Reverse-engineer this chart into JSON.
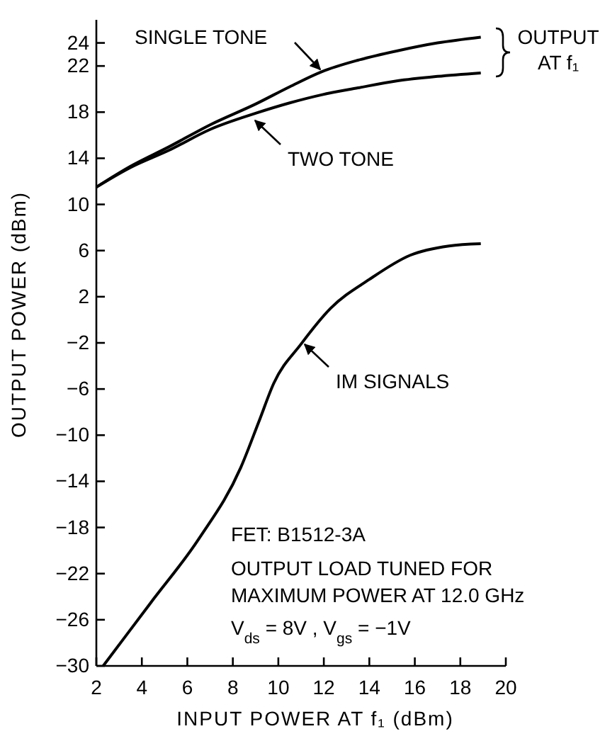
{
  "chart_data": {
    "type": "line",
    "xlabel": "INPUT POWER AT f₁ (dBm)",
    "ylabel": "OUTPUT POWER (dBm)",
    "xlim": [
      2,
      20
    ],
    "xticks": [
      2,
      4,
      6,
      8,
      10,
      12,
      14,
      16,
      18,
      20
    ],
    "ylim": [
      -30,
      26
    ],
    "yticks": [
      -30,
      -26,
      -22,
      -18,
      -14,
      -10,
      -6,
      -2,
      2,
      6,
      10,
      14,
      18,
      22,
      24
    ],
    "series": [
      {
        "name": "SINGLE TONE",
        "color": "#000000",
        "x": [
          2,
          3.5,
          5.2,
          7,
          9,
          10.5,
          11.9,
          13.5,
          15.2,
          17,
          18.9
        ],
        "values": [
          11.5,
          13.3,
          15.0,
          16.9,
          18.7,
          20.2,
          21.5,
          22.5,
          23.3,
          24.0,
          24.5
        ]
      },
      {
        "name": "TWO TONE",
        "color": "#000000",
        "x": [
          2,
          3.5,
          5.2,
          7,
          9,
          10.5,
          11.9,
          13.5,
          15.2,
          17,
          18.9
        ],
        "values": [
          11.5,
          13.2,
          14.7,
          16.5,
          17.9,
          18.8,
          19.5,
          20.1,
          20.7,
          21.1,
          21.4
        ]
      },
      {
        "name": "IM SIGNALS",
        "color": "#000000",
        "x": [
          2.3,
          4.4,
          6.5,
          8.35,
          9.15,
          9.8,
          11.0,
          12.3,
          14.0,
          15.8,
          17.5,
          18.9
        ],
        "values": [
          -30,
          -24.5,
          -19,
          -12.8,
          -8.8,
          -5.5,
          -2.1,
          1.0,
          3.5,
          5.6,
          6.4,
          6.6
        ]
      }
    ],
    "annotations": [
      "OUTPUT AT f₁",
      "FET: B1512-3A",
      "OUTPUT LOAD TUNED FOR",
      "MAXIMUM POWER AT 12.0 GHz",
      "V$_{ds}$ = 8V , V$_{gs}$ = −1V"
    ],
    "grid": false,
    "legend": "top",
    "marker": "none",
    "line_style": "solid"
  }
}
